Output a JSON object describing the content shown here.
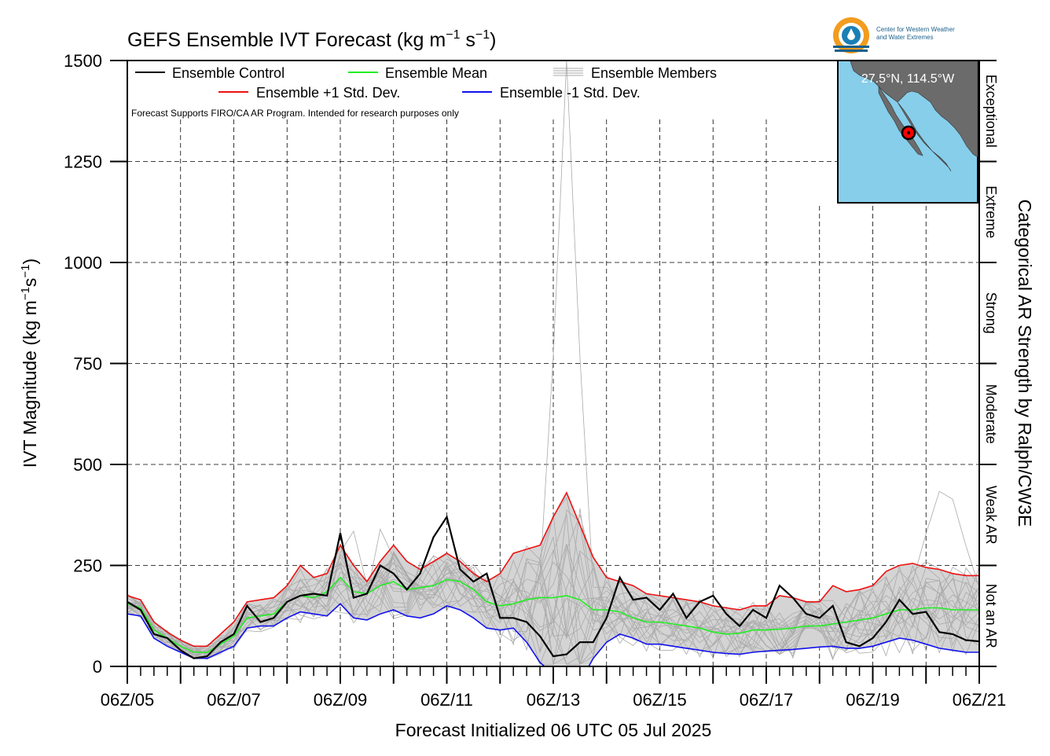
{
  "chart_data": {
    "type": "line",
    "title": "GEFS Ensemble IVT Forecast (kg m",
    "title_sup1": "−1",
    "title_mid": " s",
    "title_sup2": "−1",
    "title_end": ")",
    "ylabel": "IVT Magnitude (kg m",
    "ylabel_sup1": "−1",
    "ylabel_mid": "s",
    "ylabel_sup2": "−1",
    "ylabel_end": ")",
    "xlabel": "Forecast Initialized 06 UTC 05 Jul 2025",
    "right_label": "Categorical AR Strength by Ralph/CW3E",
    "note": "Forecast Supports FIRO/CA AR Program. Intended for research purposes only",
    "ylim": [
      0,
      1500
    ],
    "xlim_days": [
      5.25,
      21.25
    ],
    "yticks": [
      0,
      250,
      500,
      750,
      1000,
      1250,
      1500
    ],
    "xtick_labels": [
      "06Z/05",
      "06Z/07",
      "06Z/09",
      "06Z/11",
      "06Z/13",
      "06Z/15",
      "06Z/17",
      "06Z/19",
      "06Z/21"
    ],
    "categories": [
      {
        "label": "Not an AR",
        "range": [
          0,
          250
        ]
      },
      {
        "label": "Weak AR",
        "range": [
          250,
          500
        ]
      },
      {
        "label": "Moderate",
        "range": [
          500,
          750
        ]
      },
      {
        "label": "Strong",
        "range": [
          750,
          1000
        ]
      },
      {
        "label": "Extreme",
        "range": [
          1000,
          1250
        ]
      },
      {
        "label": "Exceptional",
        "range": [
          1250,
          1500
        ]
      }
    ],
    "legend": {
      "control": "Ensemble Control",
      "mean": "Ensemble Mean",
      "members": "Ensemble Members",
      "plus_std": "Ensemble +1 Std. Dev.",
      "minus_std": "Ensemble -1 Std. Dev."
    },
    "colors": {
      "control": "#000000",
      "mean": "#22ee22",
      "plus_std": "#ee1111",
      "minus_std": "#1111ee",
      "members": "#aaaaaa",
      "spread": "#d4d4d4",
      "map_ocean": "#87ceeb",
      "map_land": "#6b6b6b",
      "marker": "#ff0000"
    },
    "series": [
      {
        "name": "Ensemble Control",
        "x": [
          5.25,
          5.5,
          5.75,
          6.0,
          6.25,
          6.5,
          6.75,
          7.0,
          7.25,
          7.5,
          7.75,
          8.0,
          8.25,
          8.5,
          8.75,
          9.0,
          9.25,
          9.5,
          9.75,
          10.0,
          10.25,
          10.5,
          10.75,
          11.0,
          11.25,
          11.5,
          11.75,
          12.0,
          12.25,
          12.5,
          12.75,
          13.0,
          13.25,
          13.5,
          13.75,
          14.0,
          14.25,
          14.5,
          14.75,
          15.0,
          15.25,
          15.5,
          15.75,
          16.0,
          16.25,
          16.5,
          16.75,
          17.0,
          17.25,
          17.5,
          17.75,
          18.0,
          18.25,
          18.5,
          18.75,
          19.0,
          19.25,
          19.5,
          19.75,
          20.0,
          20.25,
          20.5,
          20.75,
          21.0,
          21.25
        ],
        "values": [
          160,
          140,
          80,
          70,
          40,
          20,
          25,
          60,
          80,
          150,
          110,
          120,
          160,
          175,
          180,
          175,
          330,
          170,
          180,
          250,
          230,
          190,
          230,
          320,
          370,
          240,
          210,
          230,
          120,
          120,
          110,
          75,
          25,
          30,
          60,
          60,
          120,
          220,
          165,
          170,
          140,
          180,
          120,
          160,
          175,
          130,
          100,
          140,
          120,
          200,
          170,
          130,
          120,
          150,
          60,
          50,
          70,
          110,
          165,
          130,
          135,
          85,
          80,
          65,
          62
        ]
      },
      {
        "name": "Ensemble Mean",
        "x": [
          5.25,
          5.5,
          5.75,
          6.0,
          6.25,
          6.5,
          6.75,
          7.0,
          7.25,
          7.5,
          7.75,
          8.0,
          8.25,
          8.5,
          8.75,
          9.0,
          9.25,
          9.5,
          9.75,
          10.0,
          10.25,
          10.5,
          10.75,
          11.0,
          11.25,
          11.5,
          11.75,
          12.0,
          12.25,
          12.5,
          12.75,
          13.0,
          13.25,
          13.5,
          13.75,
          14.0,
          14.25,
          14.5,
          14.75,
          15.0,
          15.25,
          15.5,
          15.75,
          16.0,
          16.25,
          16.5,
          16.75,
          17.0,
          17.25,
          17.5,
          17.75,
          18.0,
          18.25,
          18.5,
          18.75,
          19.0,
          19.25,
          19.5,
          19.75,
          20.0,
          20.25,
          20.5,
          20.75,
          21.0,
          21.25
        ],
        "values": [
          155,
          145,
          90,
          70,
          50,
          35,
          35,
          55,
          75,
          120,
          125,
          130,
          160,
          175,
          170,
          185,
          220,
          185,
          180,
          200,
          210,
          190,
          195,
          200,
          215,
          210,
          190,
          160,
          150,
          155,
          165,
          170,
          170,
          175,
          165,
          140,
          140,
          135,
          120,
          110,
          110,
          105,
          100,
          95,
          85,
          80,
          82,
          90,
          90,
          92,
          95,
          100,
          100,
          105,
          110,
          115,
          120,
          130,
          140,
          140,
          145,
          145,
          140,
          140,
          140
        ]
      },
      {
        "name": "Ensemble +1 Std. Dev.",
        "x": [
          5.25,
          5.5,
          5.75,
          6.0,
          6.25,
          6.5,
          6.75,
          7.0,
          7.25,
          7.5,
          7.75,
          8.0,
          8.25,
          8.5,
          8.75,
          9.0,
          9.25,
          9.5,
          9.75,
          10.0,
          10.25,
          10.5,
          10.75,
          11.0,
          11.25,
          11.5,
          11.75,
          12.0,
          12.25,
          12.5,
          12.75,
          13.0,
          13.25,
          13.5,
          13.75,
          14.0,
          14.25,
          14.5,
          14.75,
          15.0,
          15.25,
          15.5,
          15.75,
          16.0,
          16.25,
          16.5,
          16.75,
          17.0,
          17.25,
          17.5,
          17.75,
          18.0,
          18.25,
          18.5,
          18.75,
          19.0,
          19.25,
          19.5,
          19.75,
          20.0,
          20.25,
          20.5,
          20.75,
          21.0,
          21.25
        ],
        "values": [
          175,
          165,
          110,
          85,
          65,
          50,
          50,
          80,
          110,
          160,
          165,
          170,
          200,
          250,
          220,
          230,
          300,
          250,
          210,
          260,
          300,
          260,
          240,
          260,
          280,
          260,
          230,
          210,
          230,
          280,
          290,
          300,
          370,
          430,
          350,
          270,
          220,
          210,
          200,
          180,
          175,
          170,
          165,
          160,
          150,
          145,
          140,
          150,
          150,
          175,
          170,
          160,
          160,
          200,
          185,
          190,
          200,
          235,
          250,
          255,
          245,
          240,
          230,
          225,
          225
        ]
      },
      {
        "name": "Ensemble -1 Std. Dev.",
        "x": [
          5.25,
          5.5,
          5.75,
          6.0,
          6.25,
          6.5,
          6.75,
          7.0,
          7.25,
          7.5,
          7.75,
          8.0,
          8.25,
          8.5,
          8.75,
          9.0,
          9.25,
          9.5,
          9.75,
          10.0,
          10.25,
          10.5,
          10.75,
          11.0,
          11.25,
          11.5,
          11.75,
          12.0,
          12.25,
          12.5,
          12.75,
          13.0,
          13.25,
          13.5,
          13.75,
          14.0,
          14.25,
          14.5,
          14.75,
          15.0,
          15.25,
          15.5,
          15.75,
          16.0,
          16.25,
          16.5,
          16.75,
          17.0,
          17.25,
          17.5,
          17.75,
          18.0,
          18.25,
          18.5,
          18.75,
          19.0,
          19.25,
          19.5,
          19.75,
          20.0,
          20.25,
          20.5,
          20.75,
          21.0,
          21.25
        ],
        "values": [
          130,
          125,
          70,
          50,
          35,
          20,
          20,
          35,
          50,
          95,
          100,
          100,
          120,
          135,
          130,
          125,
          155,
          120,
          115,
          130,
          140,
          125,
          120,
          130,
          150,
          140,
          120,
          95,
          90,
          95,
          60,
          10,
          -20,
          -60,
          -40,
          20,
          60,
          80,
          70,
          55,
          55,
          50,
          45,
          40,
          35,
          32,
          30,
          35,
          38,
          40,
          42,
          45,
          48,
          50,
          45,
          45,
          50,
          60,
          70,
          65,
          55,
          45,
          40,
          35,
          35
        ]
      }
    ],
    "members_overview": {
      "description_count": 20,
      "peak_value": 1500,
      "peak_x": 13.5
    }
  },
  "inset": {
    "location": "27.5°N, 114.5°W",
    "logo_line1": "Center for Western Weather",
    "logo_line2": "and Water Extremes"
  }
}
